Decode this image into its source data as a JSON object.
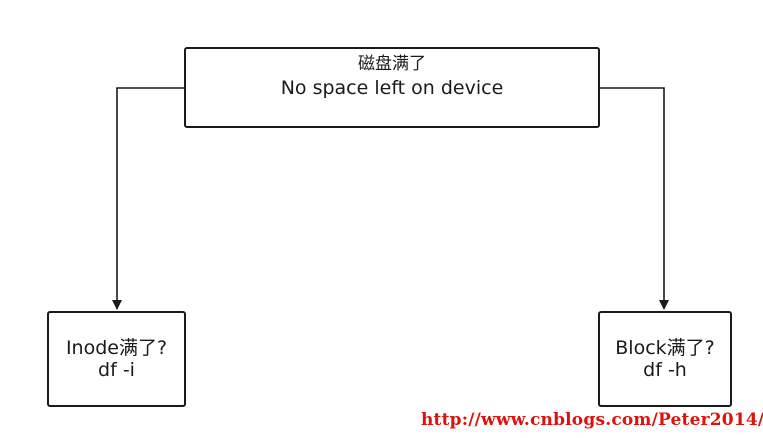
{
  "nodes": {
    "top": {
      "line1": "磁盘满了",
      "line2": "No space left on device"
    },
    "left": {
      "line1": "Inode满了?",
      "line2": "df -i"
    },
    "right": {
      "line1": "Block满了?",
      "line2": "df -h"
    }
  },
  "edges": [
    {
      "from": "top",
      "to": "left"
    },
    {
      "from": "top",
      "to": "right"
    }
  ],
  "watermark": "http://www.cnblogs.com/Peter2014/"
}
